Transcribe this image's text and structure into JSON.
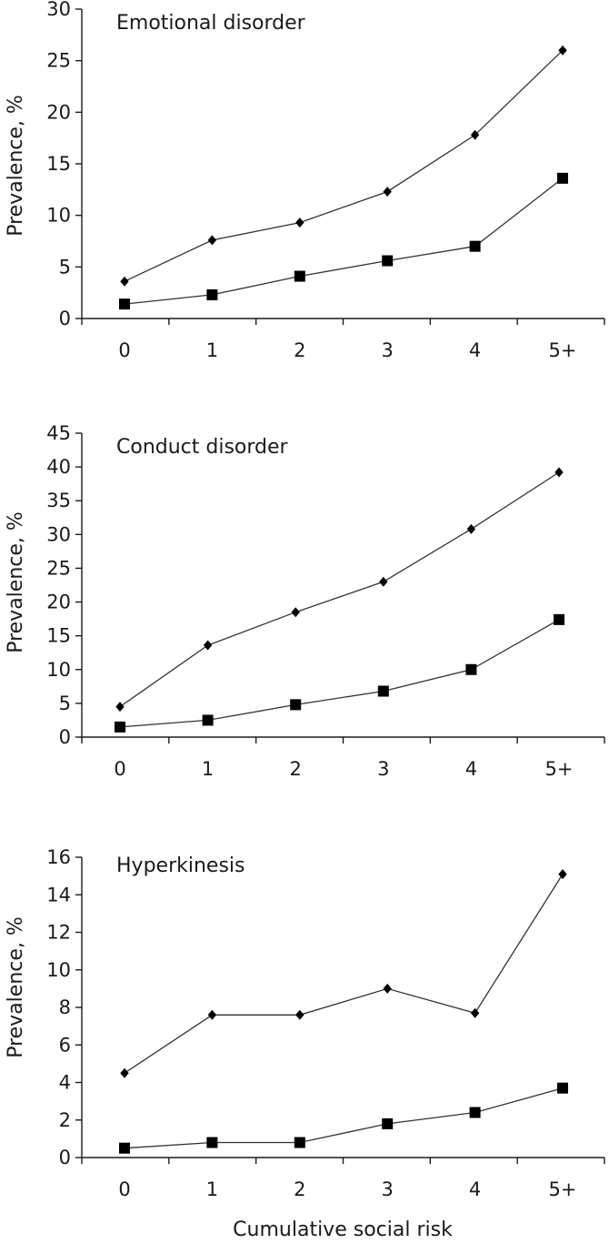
{
  "x_axis_label": "Cumulative social risk",
  "colors": {
    "line": "#333333",
    "marker": "#000000",
    "axis": "#1a1a1a"
  },
  "chart_data": [
    {
      "type": "line",
      "title": "Emotional disorder",
      "ylabel": "Prevalence, %",
      "xlabel": "",
      "categories": [
        "0",
        "1",
        "2",
        "3",
        "4",
        "5+"
      ],
      "ylim": [
        0,
        30
      ],
      "yticks": [
        "0",
        "5",
        "10",
        "15",
        "20",
        "25",
        "30"
      ],
      "grid": false,
      "series": [
        {
          "marker": "diamond",
          "values": [
            3.6,
            7.6,
            9.3,
            12.3,
            17.8,
            26.0
          ]
        },
        {
          "marker": "square",
          "values": [
            1.4,
            2.3,
            4.1,
            5.6,
            7.0,
            13.6
          ]
        }
      ]
    },
    {
      "type": "line",
      "title": "Conduct disorder",
      "ylabel": "Prevalence, %",
      "xlabel": "",
      "categories": [
        "0",
        "1",
        "2",
        "3",
        "4",
        "5+"
      ],
      "ylim": [
        0,
        45
      ],
      "yticks": [
        "0",
        "5",
        "10",
        "15",
        "20",
        "25",
        "30",
        "35",
        "40",
        "45"
      ],
      "grid": false,
      "series": [
        {
          "marker": "diamond",
          "values": [
            4.5,
            13.6,
            18.5,
            23.0,
            30.8,
            39.2
          ]
        },
        {
          "marker": "square",
          "values": [
            1.5,
            2.5,
            4.8,
            6.8,
            10.0,
            17.4
          ]
        }
      ]
    },
    {
      "type": "line",
      "title": "Hyperkinesis",
      "ylabel": "Prevalence, %",
      "xlabel": "Cumulative social risk",
      "categories": [
        "0",
        "1",
        "2",
        "3",
        "4",
        "5+"
      ],
      "ylim": [
        0,
        16
      ],
      "yticks": [
        "0",
        "2",
        "4",
        "6",
        "8",
        "10",
        "12",
        "14",
        "16"
      ],
      "grid": false,
      "series": [
        {
          "marker": "diamond",
          "values": [
            4.5,
            7.6,
            7.6,
            9.0,
            7.7,
            15.1
          ]
        },
        {
          "marker": "square",
          "values": [
            0.5,
            0.8,
            0.8,
            1.8,
            2.4,
            3.7
          ]
        }
      ]
    }
  ]
}
